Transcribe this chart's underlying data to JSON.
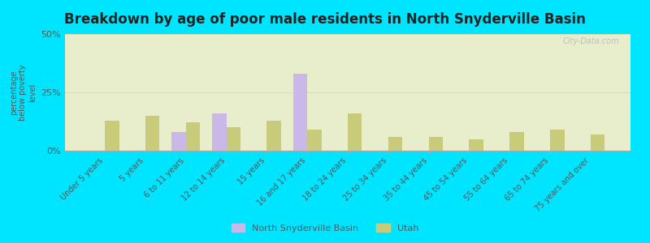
{
  "title": "Breakdown by age of poor male residents in North Snyderville Basin",
  "ylabel": "percentage\nbelow poverty\nlevel",
  "categories": [
    "Under 5 years",
    "5 years",
    "6 to 11 years",
    "12 to 14 years",
    "15 years",
    "16 and 17 years",
    "18 to 24 years",
    "25 to 34 years",
    "35 to 44 years",
    "45 to 54 years",
    "55 to 64 years",
    "65 to 74 years",
    "75 years and over"
  ],
  "nsb_values": [
    0,
    0,
    8,
    16,
    0,
    33,
    0,
    0,
    0,
    0,
    0,
    0,
    0
  ],
  "utah_values": [
    13,
    15,
    12,
    10,
    13,
    9,
    16,
    6,
    6,
    5,
    8,
    9,
    7
  ],
  "nsb_color": "#c9b8e8",
  "utah_color": "#c8cc7a",
  "bg_color": "#00e5ff",
  "plot_bg_color": "#e8edcc",
  "ylim": [
    0,
    50
  ],
  "yticks": [
    0,
    25,
    50
  ],
  "ytick_labels": [
    "0%",
    "25%",
    "50%"
  ],
  "title_fontsize": 12,
  "legend_labels": [
    "North Snyderville Basin",
    "Utah"
  ],
  "bar_width": 0.35,
  "grid_color": "#d8ddb8",
  "watermark": "City-Data.com"
}
